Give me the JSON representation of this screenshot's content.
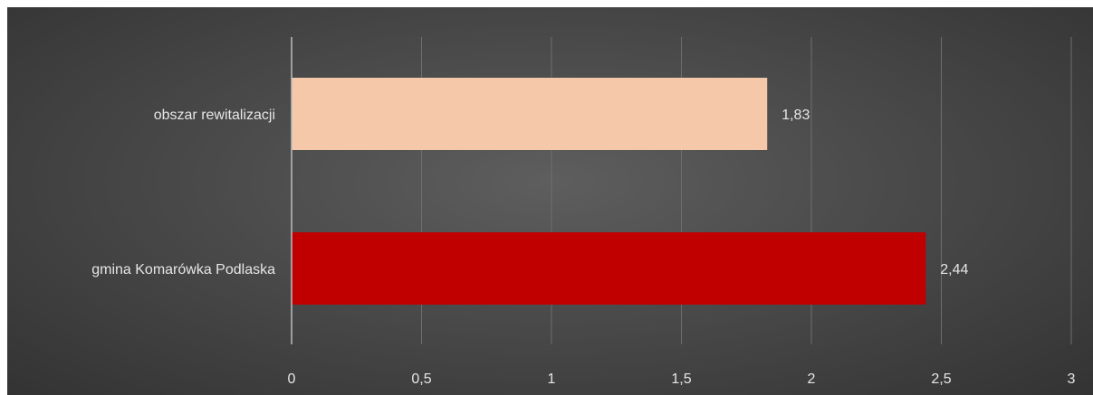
{
  "chart_data": {
    "type": "bar",
    "orientation": "horizontal",
    "categories": [
      "obszar rewitalizacji",
      "gmina Komarówka Podlaska"
    ],
    "values": [
      1.83,
      2.44
    ],
    "data_labels": [
      "1,83",
      "2,44"
    ],
    "colors": [
      "#f6c8aa",
      "#c00000"
    ],
    "xlim": [
      0,
      3
    ],
    "xticks": [
      0,
      0.5,
      1,
      1.5,
      2,
      2.5,
      3
    ],
    "xtick_labels": [
      "0",
      "0,5",
      "1",
      "1,5",
      "2",
      "2,5",
      "3"
    ],
    "grid": "vertical",
    "legend": "none",
    "background": "#4a4a4a"
  }
}
